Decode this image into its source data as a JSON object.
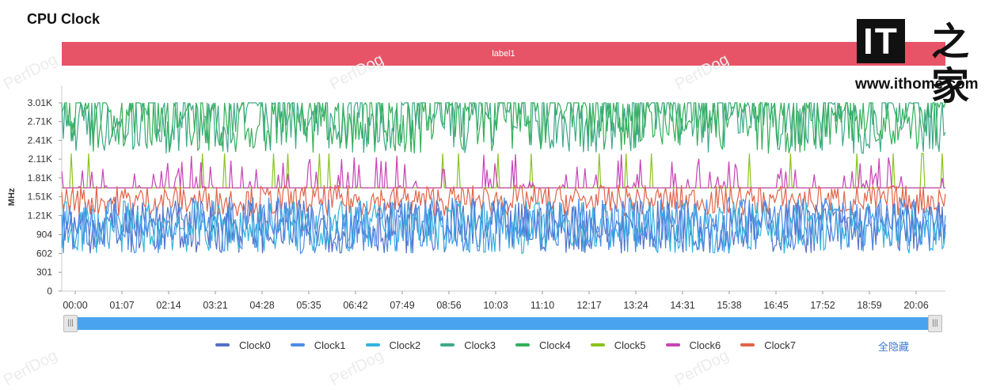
{
  "page": {
    "title": "CPU Clock",
    "label_bar": "label1"
  },
  "logo": {
    "it": "IT",
    "zh": "之家",
    "url": "www.ithome.com"
  },
  "watermark": "PerfDog",
  "controls": {
    "hide_all": "全隐藏",
    "handle_glyph": "|||"
  },
  "chart_data": {
    "type": "line",
    "title": "CPU Clock",
    "xlabel": "",
    "ylabel": "MHz",
    "ylim": [
      0,
      3010
    ],
    "yticks": [
      0,
      301,
      602,
      904,
      1210,
      1510,
      1810,
      2110,
      2410,
      2710,
      3010
    ],
    "ytick_labels": [
      "0",
      "301",
      "602",
      "904",
      "1.21K",
      "1.51K",
      "1.81K",
      "2.11K",
      "2.41K",
      "2.71K",
      "3.01K"
    ],
    "xtick_labels": [
      "00:00",
      "01:07",
      "02:14",
      "03:21",
      "04:28",
      "05:35",
      "06:42",
      "07:49",
      "08:56",
      "10:03",
      "11:10",
      "12:17",
      "13:24",
      "14:31",
      "15:38",
      "16:45",
      "17:52",
      "18:59",
      "20:06"
    ],
    "duration_seconds": 1306,
    "series": [
      {
        "name": "Clock0",
        "color": "#5470c6",
        "min": 602,
        "max": 1810,
        "typical": 1000
      },
      {
        "name": "Clock1",
        "color": "#4d8ee6",
        "min": 602,
        "max": 1810,
        "typical": 1000
      },
      {
        "name": "Clock2",
        "color": "#34b4e0",
        "min": 602,
        "max": 1810,
        "typical": 1000
      },
      {
        "name": "Clock3",
        "color": "#3ea889",
        "min": 2200,
        "max": 3010,
        "typical": 2600
      },
      {
        "name": "Clock4",
        "color": "#34b05a",
        "min": 2200,
        "max": 3010,
        "typical": 2600
      },
      {
        "name": "Clock5",
        "color": "#8ac41f",
        "min": 1650,
        "max": 2200,
        "typical": 1650
      },
      {
        "name": "Clock6",
        "color": "#c843b6",
        "min": 1650,
        "max": 2200,
        "typical": 1650
      },
      {
        "name": "Clock7",
        "color": "#e0644a",
        "min": 1000,
        "max": 1700,
        "typical": 1400
      }
    ]
  }
}
